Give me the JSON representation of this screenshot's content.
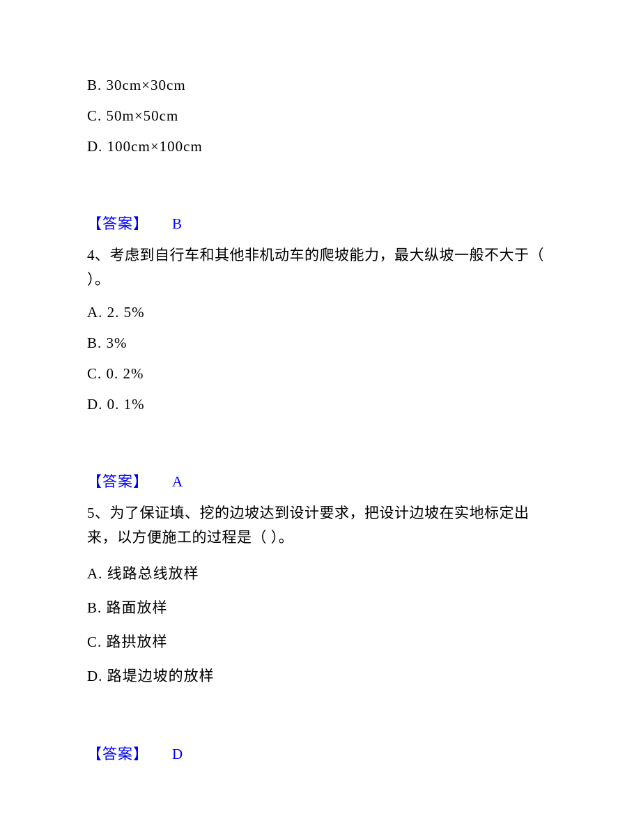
{
  "q3_tail": {
    "options": [
      "B. 30cm×30cm",
      "C. 50m×50cm",
      "D. 100cm×100cm"
    ],
    "answer_label": "【答案】",
    "answer_value": "B"
  },
  "q4": {
    "text": "4、考虑到自行车和其他非机动车的爬坡能力，最大纵坡一般不大于（  ）。",
    "options": [
      "A. 2. 5%",
      "B. 3%",
      "C. 0. 2%",
      "D. 0. 1%"
    ],
    "answer_label": "【答案】",
    "answer_value": "A"
  },
  "q5": {
    "text": "5、为了保证填、挖的边坡达到设计要求，把设计边坡在实地标定出来，以方便施工的过程是（ ）。",
    "options": [
      "A. 线路总线放样",
      "B. 路面放样",
      "C. 路拱放样",
      "D. 路堤边坡的放样"
    ],
    "answer_label": "【答案】",
    "answer_value": "D"
  },
  "colors": {
    "text": "#000000",
    "answer": "#0000ff",
    "background": "#ffffff"
  },
  "font": {
    "family": "SimSun",
    "size_pt": 16
  }
}
